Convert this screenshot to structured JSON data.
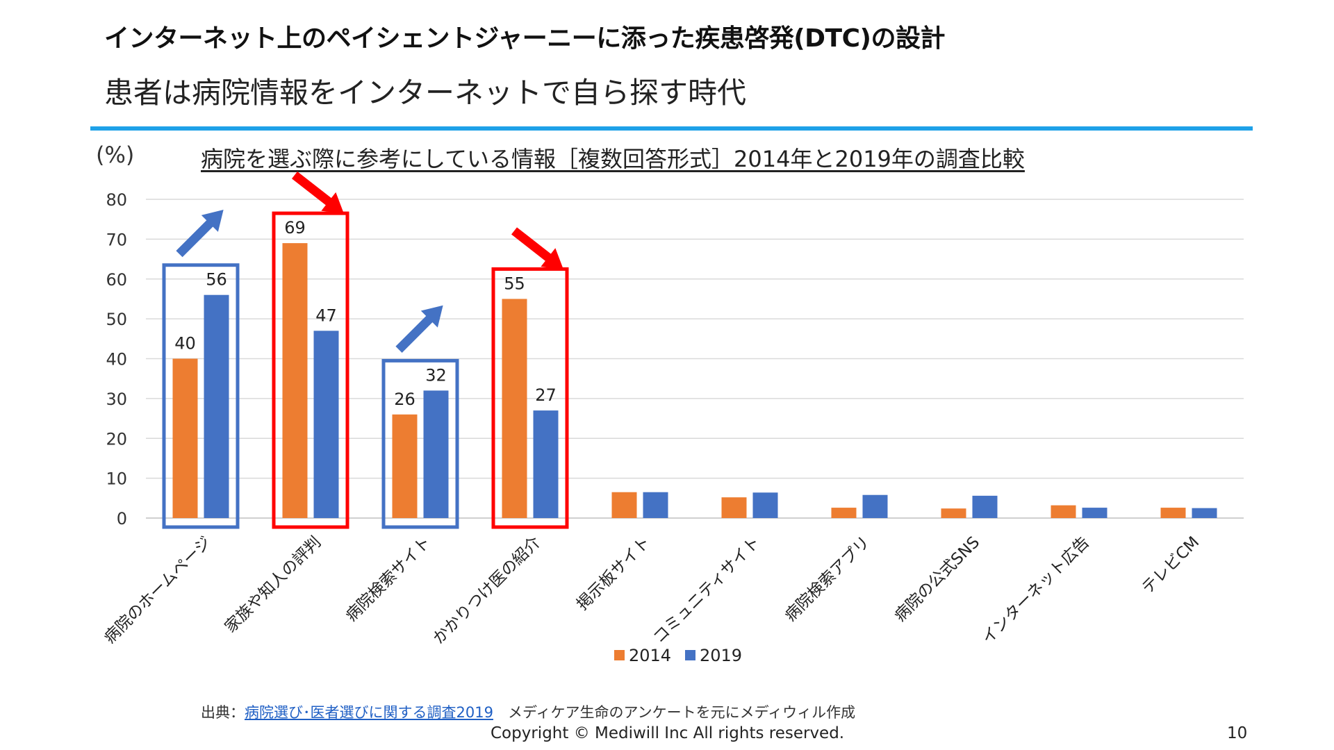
{
  "slide": {
    "title": "インターネット上のペイシェントジャーニーに添った疾患啓発(DTC)の設計",
    "subtitle": "患者は病院情報をインターネットで自ら探す時代"
  },
  "chart_data": {
    "type": "bar",
    "title": "病院を選ぶ際に参考にしている情報［複数回答形式］2014年と2019年の調査比較",
    "ylabel": "(%)",
    "xlabel": "",
    "ylim": [
      0,
      80
    ],
    "yticks": [
      0,
      10,
      20,
      30,
      40,
      50,
      60,
      70,
      80
    ],
    "grid": true,
    "legend_position": "bottom",
    "categories": [
      "病院のホームページ",
      "家族や知人の評判",
      "病院検索サイト",
      "かかりつけ医の紹介",
      "掲示板サイト",
      "コミュニティサイト",
      "病院検索アプリ",
      "病院の公式SNS",
      "インターネット広告",
      "テレビCM"
    ],
    "series": [
      {
        "name": "2014",
        "color": "#ED7D31",
        "values": [
          40,
          69,
          26,
          55,
          6.5,
          5.2,
          2.6,
          2.4,
          3.2,
          2.6
        ]
      },
      {
        "name": "2019",
        "color": "#4472C4",
        "values": [
          56,
          47,
          32,
          27,
          6.5,
          6.4,
          5.8,
          5.6,
          2.6,
          2.5
        ]
      }
    ],
    "data_labels": [
      {
        "category_index": 0,
        "values": [
          "40",
          "56"
        ]
      },
      {
        "category_index": 1,
        "values": [
          "69",
          "47"
        ]
      },
      {
        "category_index": 2,
        "values": [
          "26",
          "32"
        ]
      },
      {
        "category_index": 3,
        "values": [
          "55",
          "27"
        ]
      }
    ],
    "annotations": [
      {
        "category_index": 0,
        "box_color": "#4472C4",
        "arrow": "up",
        "arrow_color": "#4472C4"
      },
      {
        "category_index": 1,
        "box_color": "#FF0000",
        "arrow": "down",
        "arrow_color": "#FF0000"
      },
      {
        "category_index": 2,
        "box_color": "#4472C4",
        "arrow": "up",
        "arrow_color": "#4472C4"
      },
      {
        "category_index": 3,
        "box_color": "#FF0000",
        "arrow": "down",
        "arrow_color": "#FF0000"
      }
    ]
  },
  "footer": {
    "source_prefix": "出典：",
    "source_link": "病院選び･医者選びに関する調査2019",
    "source_suffix": "　メディケア生命のアンケートを元にメディウィル作成",
    "copyright": "Copyright © Mediwill Inc All rights reserved.",
    "page_number": "10"
  }
}
